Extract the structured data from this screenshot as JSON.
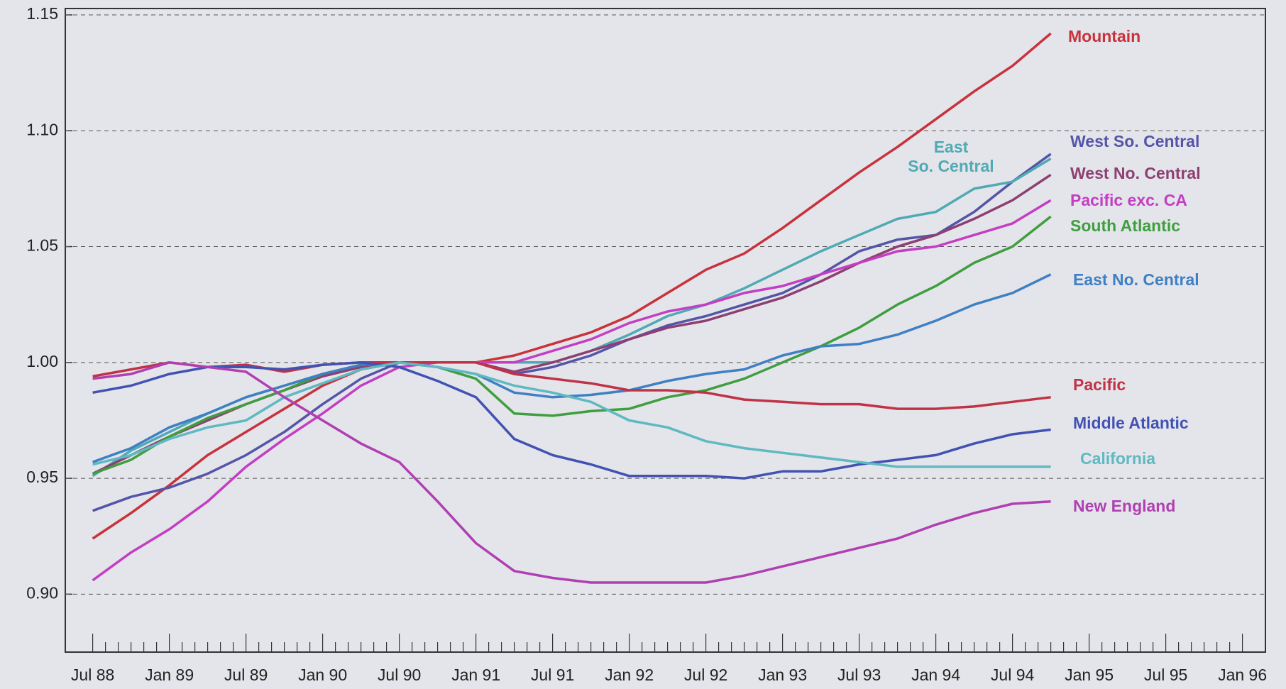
{
  "chart_data": {
    "type": "line",
    "categories": [
      "Jul 88",
      null,
      "Jan 89",
      null,
      "Jul 89",
      null,
      "Jan 90",
      null,
      "Jul 90",
      null,
      "Jan 91",
      null,
      "Jul 91",
      null,
      "Jan 92",
      null,
      "Jul 92",
      null,
      "Jan 93",
      null,
      "Jul 93",
      null,
      "Jan 94",
      null,
      "Jul 94",
      null,
      "Jan 95",
      null,
      "Jul 95",
      null,
      "Jan 96"
    ],
    "ylim": [
      0.875,
      1.15
    ],
    "yticks": [
      {
        "value": 0.9,
        "label": "0.90"
      },
      {
        "value": 0.95,
        "label": "0.95"
      },
      {
        "value": 1.0,
        "label": "1.00"
      },
      {
        "value": 1.05,
        "label": "1.05"
      },
      {
        "value": 1.1,
        "label": "1.10"
      },
      {
        "value": 1.15,
        "label": "1.15"
      }
    ],
    "grid": true,
    "series": [
      {
        "name": "Mountain",
        "color": "#c8323c",
        "values": [
          0.924,
          0.935,
          0.947,
          0.96,
          0.97,
          0.98,
          0.99,
          0.997,
          1.0,
          1.0,
          1.0,
          1.003,
          1.008,
          1.013,
          1.02,
          1.03,
          1.04,
          1.047,
          1.058,
          1.07,
          1.082,
          1.093,
          1.105,
          1.117,
          1.128,
          1.142,
          null,
          null,
          null,
          null,
          null
        ]
      },
      {
        "name": "West So. Central",
        "color": "#5555a8",
        "values": [
          0.936,
          0.942,
          0.946,
          0.952,
          0.96,
          0.97,
          0.982,
          0.993,
          1.0,
          1.0,
          1.0,
          0.995,
          0.998,
          1.003,
          1.01,
          1.016,
          1.02,
          1.025,
          1.03,
          1.038,
          1.048,
          1.053,
          1.055,
          1.065,
          1.078,
          1.09,
          null,
          null,
          null,
          null,
          null
        ]
      },
      {
        "name": "East So. Central",
        "color": "#4faab4",
        "values": [
          0.951,
          0.962,
          0.97,
          0.978,
          0.985,
          0.99,
          0.995,
          0.999,
          1.0,
          1.0,
          1.0,
          1.0,
          1.0,
          1.005,
          1.012,
          1.02,
          1.025,
          1.032,
          1.04,
          1.048,
          1.055,
          1.062,
          1.065,
          1.075,
          1.078,
          1.088,
          null,
          null,
          null,
          null,
          null
        ]
      },
      {
        "name": "West No. Central",
        "color": "#8e3f72",
        "values": [
          0.952,
          0.96,
          0.968,
          0.975,
          0.982,
          0.988,
          0.994,
          0.998,
          1.0,
          1.0,
          1.0,
          0.996,
          1.0,
          1.005,
          1.01,
          1.015,
          1.018,
          1.023,
          1.028,
          1.035,
          1.043,
          1.05,
          1.055,
          1.062,
          1.07,
          1.081,
          null,
          null,
          null,
          null,
          null
        ]
      },
      {
        "name": "Pacific exc. CA",
        "color": "#c43ec4",
        "values": [
          0.906,
          0.918,
          0.928,
          0.94,
          0.955,
          0.967,
          0.978,
          0.99,
          0.998,
          1.0,
          1.0,
          1.0,
          1.005,
          1.01,
          1.017,
          1.022,
          1.025,
          1.03,
          1.033,
          1.038,
          1.043,
          1.048,
          1.05,
          1.055,
          1.06,
          1.07,
          null,
          null,
          null,
          null,
          null
        ]
      },
      {
        "name": "South Atlantic",
        "color": "#3f9e3f",
        "values": [
          0.952,
          0.958,
          0.968,
          0.976,
          0.982,
          0.988,
          0.995,
          0.999,
          1.0,
          0.998,
          0.993,
          0.978,
          0.977,
          0.979,
          0.98,
          0.985,
          0.988,
          0.993,
          1.0,
          1.007,
          1.015,
          1.025,
          1.033,
          1.043,
          1.05,
          1.063,
          null,
          null,
          null,
          null,
          null
        ]
      },
      {
        "name": "East No. Central",
        "color": "#3f7fc4",
        "values": [
          0.957,
          0.963,
          0.972,
          0.978,
          0.985,
          0.99,
          0.995,
          0.999,
          1.0,
          0.998,
          0.995,
          0.987,
          0.985,
          0.986,
          0.988,
          0.992,
          0.995,
          0.997,
          1.003,
          1.007,
          1.008,
          1.012,
          1.018,
          1.025,
          1.03,
          1.038,
          null,
          null,
          null,
          null,
          null
        ]
      },
      {
        "name": "Pacific",
        "color": "#c03246",
        "values": [
          0.994,
          0.997,
          1.0,
          0.998,
          0.999,
          0.996,
          0.999,
          1.0,
          1.0,
          1.0,
          1.0,
          0.995,
          0.993,
          0.991,
          0.988,
          0.988,
          0.987,
          0.984,
          0.983,
          0.982,
          0.982,
          0.98,
          0.98,
          0.981,
          0.983,
          0.985,
          null,
          null,
          null,
          null,
          null
        ]
      },
      {
        "name": "Middle Atlantic",
        "color": "#4152b2",
        "values": [
          0.987,
          0.99,
          0.995,
          0.998,
          0.998,
          0.997,
          0.999,
          1.0,
          0.998,
          0.992,
          0.985,
          0.967,
          0.96,
          0.956,
          0.951,
          0.951,
          0.951,
          0.95,
          0.953,
          0.953,
          0.956,
          0.958,
          0.96,
          0.965,
          0.969,
          0.971,
          null,
          null,
          null,
          null,
          null
        ]
      },
      {
        "name": "California",
        "color": "#5fb9c2",
        "values": [
          0.956,
          0.96,
          0.967,
          0.972,
          0.975,
          0.985,
          0.991,
          0.997,
          1.0,
          0.998,
          0.995,
          0.99,
          0.987,
          0.983,
          0.975,
          0.972,
          0.966,
          0.963,
          0.961,
          0.959,
          0.957,
          0.955,
          0.955,
          0.955,
          0.955,
          0.955,
          null,
          null,
          null,
          null,
          null
        ]
      },
      {
        "name": "New England",
        "color": "#b03fb2",
        "values": [
          0.993,
          0.995,
          1.0,
          0.998,
          0.996,
          0.985,
          0.975,
          0.965,
          0.957,
          0.94,
          0.922,
          0.91,
          0.907,
          0.905,
          0.905,
          0.905,
          0.905,
          0.908,
          0.912,
          0.916,
          0.92,
          0.924,
          0.93,
          0.935,
          0.939,
          0.94,
          null,
          null,
          null,
          null,
          null
        ]
      }
    ]
  }
}
